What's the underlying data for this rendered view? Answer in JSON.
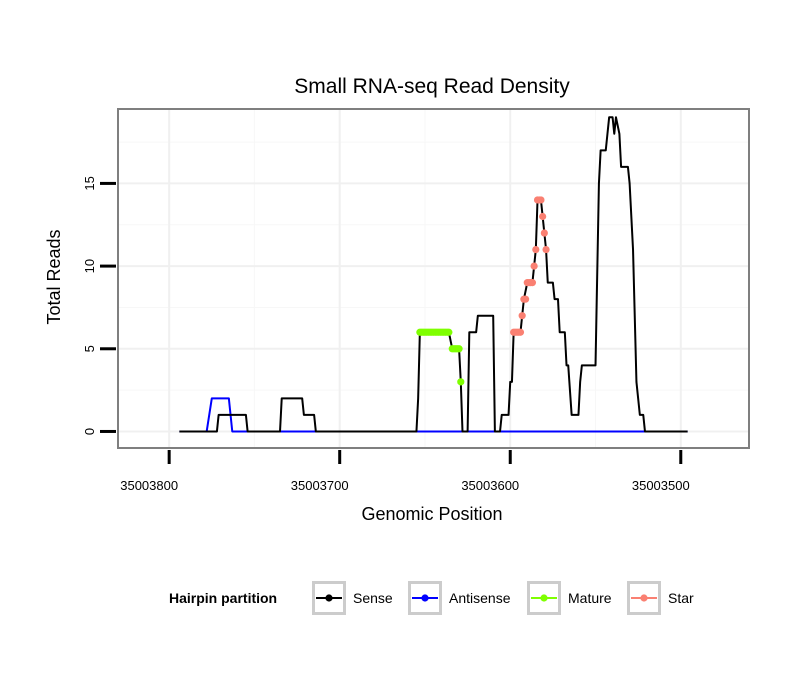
{
  "chart_data": {
    "type": "line",
    "title": "Small RNA-seq Read Density",
    "xlabel": "Genomic Position",
    "ylabel": "Total Reads",
    "xlim": [
      35003830,
      35003460
    ],
    "ylim": [
      -1,
      19.5
    ],
    "x_ticks": [
      35003800,
      35003700,
      35003600,
      35003500
    ],
    "x_tick_labels": [
      "35003800",
      "35003700",
      "35003600",
      "35003500"
    ],
    "y_ticks": [
      0,
      5,
      10,
      15
    ],
    "y_tick_labels": [
      "0",
      "5",
      "10",
      "15"
    ],
    "grid": true,
    "legend": {
      "title": "Hairpin partition",
      "placement": "bottom",
      "entries": [
        {
          "name": "Sense",
          "color": "#000000"
        },
        {
          "name": "Antisense",
          "color": "#0000ff"
        },
        {
          "name": "Mature",
          "color": "#7fff00"
        },
        {
          "name": "Star",
          "color": "#fa8072"
        }
      ]
    },
    "series": [
      {
        "name": "Sense",
        "color": "#000000",
        "style": "line",
        "points": [
          [
            35003794,
            0
          ],
          [
            35003778,
            0
          ],
          [
            35003772,
            0
          ],
          [
            35003771,
            1
          ],
          [
            35003766,
            1
          ],
          [
            35003755,
            1
          ],
          [
            35003754,
            0
          ],
          [
            35003735,
            0
          ],
          [
            35003734,
            2
          ],
          [
            35003730,
            2
          ],
          [
            35003722,
            2
          ],
          [
            35003721,
            1
          ],
          [
            35003715,
            1
          ],
          [
            35003714,
            0
          ],
          [
            35003655,
            0
          ],
          [
            35003654,
            2
          ],
          [
            35003653,
            6
          ],
          [
            35003636,
            6
          ],
          [
            35003634,
            5
          ],
          [
            35003630,
            5
          ],
          [
            35003629,
            3
          ],
          [
            35003628,
            0
          ],
          [
            35003625,
            0
          ],
          [
            35003624,
            6
          ],
          [
            35003620,
            6
          ],
          [
            35003619,
            7
          ],
          [
            35003613,
            7
          ],
          [
            35003610,
            7
          ],
          [
            35003609,
            0
          ],
          [
            35003606,
            0
          ],
          [
            35003605,
            1
          ],
          [
            35003601,
            1
          ],
          [
            35003600,
            3
          ],
          [
            35003599,
            3
          ],
          [
            35003598,
            6
          ],
          [
            35003594,
            6
          ],
          [
            35003593,
            7
          ],
          [
            35003592,
            8
          ],
          [
            35003590,
            9
          ],
          [
            35003587,
            9
          ],
          [
            35003586,
            10
          ],
          [
            35003585,
            11
          ],
          [
            35003584,
            14
          ],
          [
            35003582,
            14
          ],
          [
            35003581,
            13
          ],
          [
            35003580,
            12
          ],
          [
            35003579,
            11
          ],
          [
            35003578,
            9
          ],
          [
            35003575,
            9
          ],
          [
            35003574,
            8
          ],
          [
            35003572,
            8
          ],
          [
            35003571,
            6
          ],
          [
            35003568,
            6
          ],
          [
            35003567,
            4
          ],
          [
            35003566,
            4
          ],
          [
            35003564,
            1
          ],
          [
            35003560,
            1
          ],
          [
            35003559,
            3
          ],
          [
            35003558,
            4
          ],
          [
            35003551,
            4
          ],
          [
            35003550,
            4
          ],
          [
            35003548,
            15
          ],
          [
            35003547,
            17
          ],
          [
            35003544,
            17
          ],
          [
            35003543,
            18
          ],
          [
            35003542,
            19
          ],
          [
            35003540,
            19
          ],
          [
            35003539,
            18
          ],
          [
            35003538,
            19
          ],
          [
            35003536,
            18
          ],
          [
            35003535,
            16
          ],
          [
            35003531,
            16
          ],
          [
            35003530,
            15
          ],
          [
            35003528,
            11
          ],
          [
            35003526,
            3
          ],
          [
            35003524,
            1
          ],
          [
            35003522,
            1
          ],
          [
            35003521,
            0
          ],
          [
            35003496,
            0
          ]
        ]
      },
      {
        "name": "Antisense",
        "color": "#0000ff",
        "style": "line",
        "points": [
          [
            35003794,
            0
          ],
          [
            35003778,
            0
          ],
          [
            35003775,
            2
          ],
          [
            35003765,
            2
          ],
          [
            35003764,
            1
          ],
          [
            35003763,
            0
          ],
          [
            35003496,
            0
          ]
        ]
      },
      {
        "name": "Mature",
        "color": "#7fff00",
        "style": "points",
        "points": [
          [
            35003653,
            6
          ],
          [
            35003652,
            6
          ],
          [
            35003651,
            6
          ],
          [
            35003650,
            6
          ],
          [
            35003649,
            6
          ],
          [
            35003648,
            6
          ],
          [
            35003647,
            6
          ],
          [
            35003646,
            6
          ],
          [
            35003645,
            6
          ],
          [
            35003644,
            6
          ],
          [
            35003643,
            6
          ],
          [
            35003642,
            6
          ],
          [
            35003641,
            6
          ],
          [
            35003640,
            6
          ],
          [
            35003639,
            6
          ],
          [
            35003638,
            6
          ],
          [
            35003637,
            6
          ],
          [
            35003636,
            6
          ],
          [
            35003634,
            5
          ],
          [
            35003633,
            5
          ],
          [
            35003632,
            5
          ],
          [
            35003631,
            5
          ],
          [
            35003630,
            5
          ],
          [
            35003629,
            3
          ]
        ]
      },
      {
        "name": "Star",
        "color": "#fa8072",
        "style": "points",
        "points": [
          [
            35003598,
            6
          ],
          [
            35003597,
            6
          ],
          [
            35003596,
            6
          ],
          [
            35003595,
            6
          ],
          [
            35003594,
            6
          ],
          [
            35003593,
            7
          ],
          [
            35003592,
            8
          ],
          [
            35003591,
            8
          ],
          [
            35003590,
            9
          ],
          [
            35003589,
            9
          ],
          [
            35003588,
            9
          ],
          [
            35003587,
            9
          ],
          [
            35003586,
            10
          ],
          [
            35003585,
            11
          ],
          [
            35003584,
            14
          ],
          [
            35003583,
            14
          ],
          [
            35003582,
            14
          ],
          [
            35003581,
            13
          ],
          [
            35003580,
            12
          ],
          [
            35003579,
            11
          ]
        ]
      }
    ]
  }
}
